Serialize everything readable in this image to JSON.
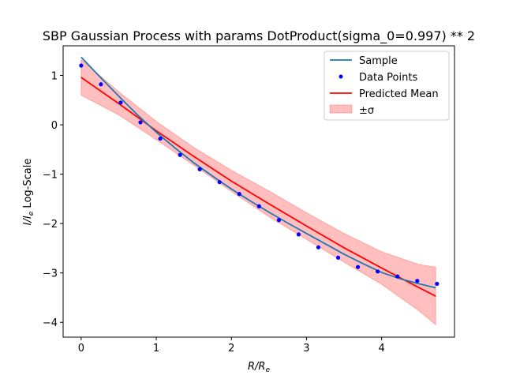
{
  "chart_data": {
    "type": "line",
    "title": "SBP Gaussian Process with params DotProduct(sigma_0=0.997) ** 2",
    "xlabel": "R/R",
    "xlabel_sub": "e",
    "ylabel_main": "I/I",
    "ylabel_sub": "e",
    "ylabel_suffix": " Log-Scale",
    "xlim": [
      -0.24,
      4.97
    ],
    "ylim": [
      -4.3,
      1.6
    ],
    "xticks": [
      0,
      1,
      2,
      3,
      4
    ],
    "xtick_labels": [
      "0",
      "1",
      "2",
      "3",
      "4"
    ],
    "yticks": [
      1,
      0,
      -1,
      -2,
      -3,
      -4
    ],
    "ytick_labels": [
      "1",
      "0",
      "−1",
      "−2",
      "−3",
      "−4"
    ],
    "grid": false,
    "legend_position": "top-right",
    "legend": [
      {
        "key": "sample",
        "label": "Sample"
      },
      {
        "key": "data",
        "label": "Data Points"
      },
      {
        "key": "mean",
        "label": "Predicted Mean"
      },
      {
        "key": "band",
        "label": "±σ"
      }
    ],
    "colors": {
      "sample": "#1f77b4",
      "data": "#0000ff",
      "mean": "#ff0000",
      "band": "#ff0000"
    },
    "sample": {
      "x": [
        0.0,
        0.25,
        0.5,
        0.75,
        1.0,
        1.25,
        1.5,
        1.75,
        2.0,
        2.25,
        2.5,
        2.75,
        3.0,
        3.25,
        3.5,
        3.75,
        4.0,
        4.25,
        4.5,
        4.72
      ],
      "y": [
        1.37,
        0.97,
        0.58,
        0.2,
        -0.15,
        -0.47,
        -0.77,
        -1.04,
        -1.3,
        -1.54,
        -1.77,
        -1.99,
        -2.2,
        -2.41,
        -2.62,
        -2.81,
        -2.99,
        -3.12,
        -3.22,
        -3.3
      ]
    },
    "data_points": {
      "x": [
        0.0,
        0.263,
        0.526,
        0.789,
        1.053,
        1.316,
        1.579,
        1.842,
        2.105,
        2.368,
        2.632,
        2.895,
        3.158,
        3.421,
        3.684,
        3.947,
        4.211,
        4.474,
        4.737
      ],
      "y": [
        1.2,
        0.82,
        0.45,
        0.05,
        -0.28,
        -0.61,
        -0.9,
        -1.16,
        -1.4,
        -1.65,
        -1.93,
        -2.22,
        -2.48,
        -2.69,
        -2.88,
        -2.97,
        -3.07,
        -3.16,
        -3.22
      ]
    },
    "predicted_mean": {
      "x": [
        0.0,
        0.5,
        1.0,
        1.5,
        2.0,
        2.5,
        3.0,
        3.5,
        4.0,
        4.5,
        4.72
      ],
      "y": [
        0.96,
        0.43,
        -0.12,
        -0.64,
        -1.14,
        -1.6,
        -2.05,
        -2.49,
        -2.9,
        -3.3,
        -3.47
      ]
    },
    "sigma_band": {
      "x": [
        0.0,
        0.5,
        1.0,
        1.5,
        2.0,
        2.5,
        3.0,
        3.5,
        4.0,
        4.5,
        4.72
      ],
      "upper": [
        1.32,
        0.67,
        0.07,
        -0.46,
        -0.92,
        -1.34,
        -1.78,
        -2.2,
        -2.57,
        -2.83,
        -2.88
      ],
      "lower": [
        0.6,
        0.2,
        -0.3,
        -0.82,
        -1.35,
        -1.86,
        -2.32,
        -2.78,
        -3.23,
        -3.77,
        -4.05
      ]
    }
  }
}
